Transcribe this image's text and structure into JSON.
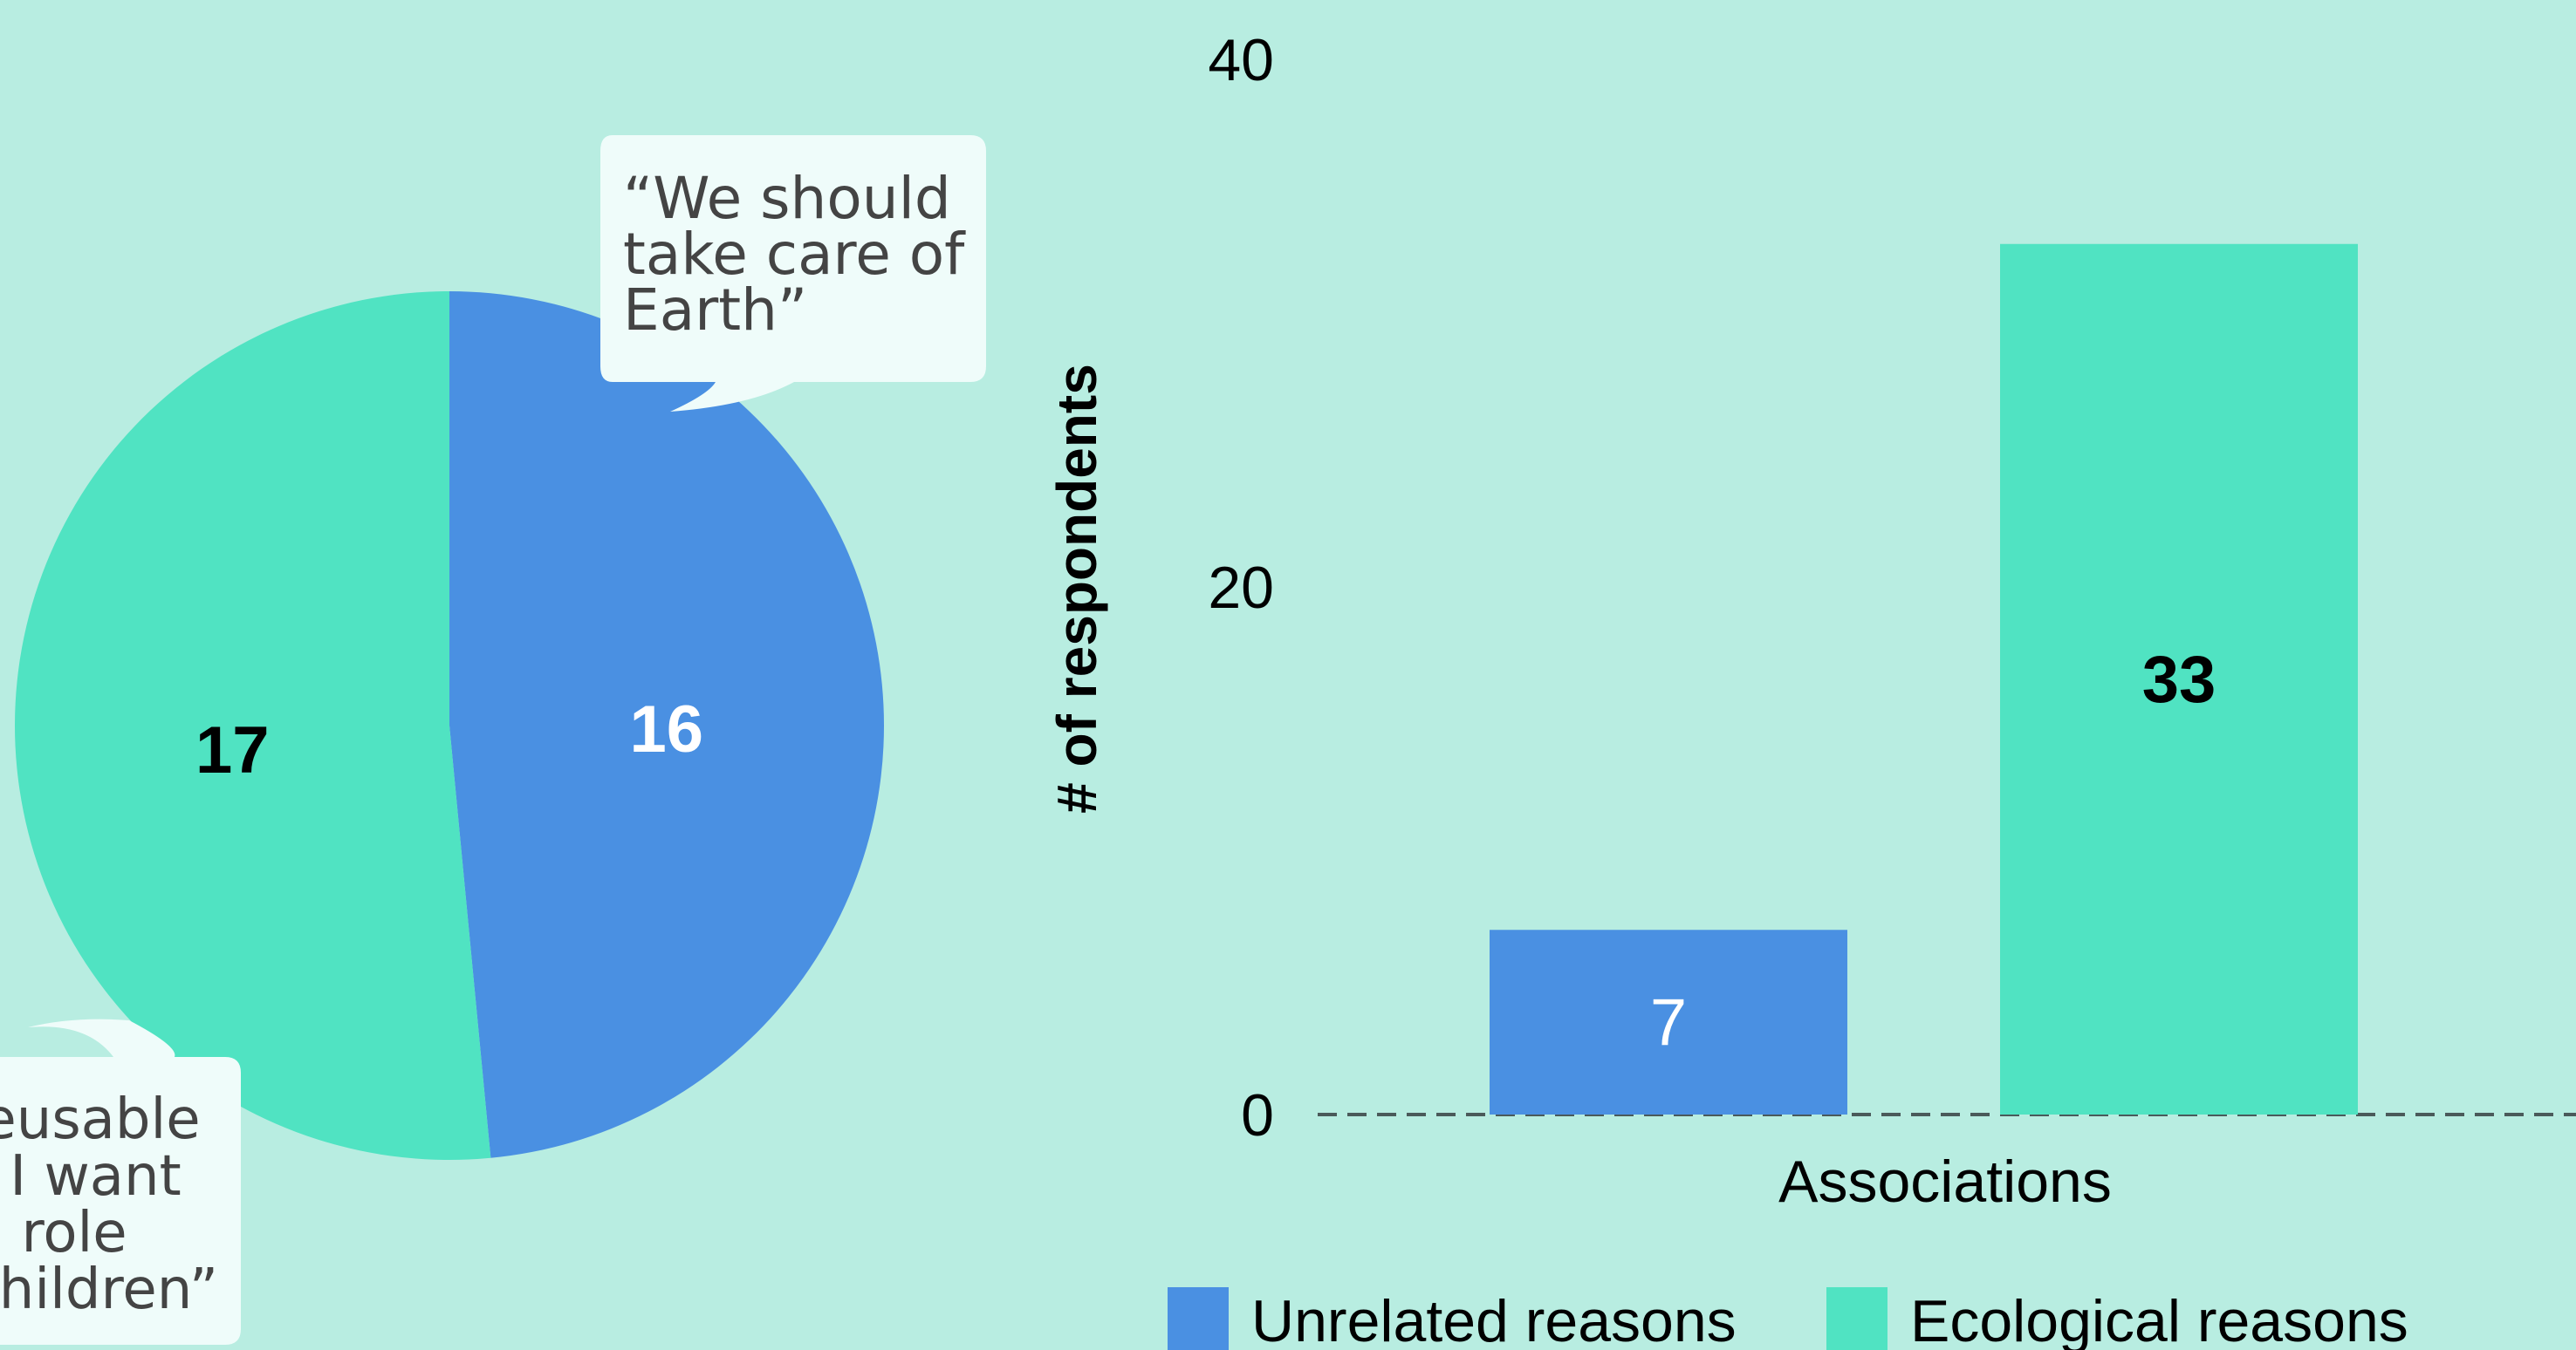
{
  "chart_data": [
    {
      "type": "pie",
      "slices": [
        {
          "label": "Unrelated reasons",
          "value": 16,
          "color": "#4a90e2",
          "label_color": "#ffffff"
        },
        {
          "label": "Ecological reasons",
          "value": 17,
          "color": "#50e3c2",
          "label_color": "#000000"
        }
      ],
      "annotations": [
        {
          "lines": [
            "“We should",
            "take care of",
            "Earth”"
          ]
        },
        {
          "lines": [
            "reusable",
            "e I want",
            "d role",
            "children”"
          ]
        }
      ]
    },
    {
      "type": "bar",
      "categories": [
        "Associations"
      ],
      "series": [
        {
          "name": "Unrelated reasons",
          "values": [
            7
          ],
          "color": "#4a90e2",
          "label_color": "#ffffff"
        },
        {
          "name": "Ecological reasons",
          "values": [
            33
          ],
          "color": "#50e3c2",
          "label_color": "#000000"
        }
      ],
      "xlabel": "Associations",
      "ylabel": "# of respondents",
      "ylim": [
        0,
        40
      ],
      "yticks": [
        0,
        20,
        40
      ],
      "baseline": "dashed",
      "legend_position": "bottom"
    }
  ],
  "colors": {
    "background": "#b8ede1",
    "bubble": "#effcfa",
    "quote_text": "#444444",
    "baseline": "#4a5a5a"
  }
}
